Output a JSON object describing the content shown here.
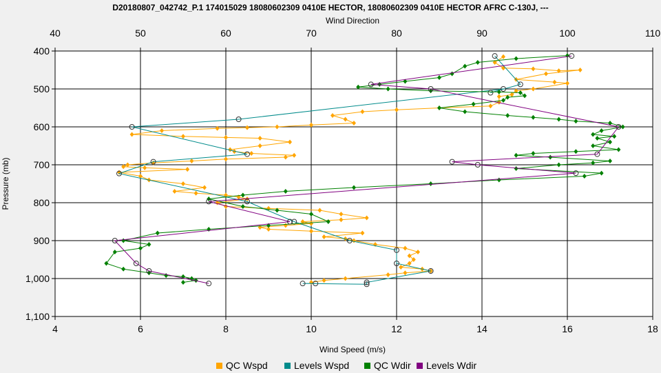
{
  "chart_data": {
    "type": "line",
    "title": "D20180807_042742_P.1 174015029 18080602309 0410E HECTOR, 18080602309 0410E HECTOR AFRC C-130J, ---",
    "x_top_label": "Wind Direction",
    "x_bottom_label": "Wind Speed (m/s)",
    "ylabel": "Pressure (mb)",
    "x_top_range": [
      40,
      110
    ],
    "x_top_ticks": [
      "40",
      "50",
      "60",
      "70",
      "80",
      "90",
      "100",
      "110"
    ],
    "x_bottom_range": [
      4,
      18
    ],
    "x_bottom_ticks": [
      "4",
      "6",
      "8",
      "10",
      "12",
      "14",
      "16",
      "18"
    ],
    "y_range": [
      400,
      1100
    ],
    "y_reversed": true,
    "y_ticks": [
      "400",
      "500",
      "600",
      "700",
      "800",
      "900",
      "1,000",
      "1,100"
    ],
    "grid": true,
    "legend_position": "bottom",
    "colors": {
      "qc_wspd": "#FFA500",
      "levels_wspd": "#008B8B",
      "qc_wdir": "#008000",
      "levels_wdir": "#800080"
    },
    "series": [
      {
        "name": "QC Wspd",
        "axis": "bottom",
        "key": "qc_wspd",
        "x": [
          14.5,
          14.3,
          14.5,
          15.2,
          15.8,
          16.3,
          15.5,
          14.8,
          15.7,
          16.0,
          15.2,
          14.8,
          14.7,
          14.4,
          14.4,
          14.2,
          13.0,
          12.0,
          11.2,
          10.5,
          10.8,
          11.0,
          10.0,
          9.2,
          8.5,
          7.8,
          6.5,
          5.8,
          7.0,
          8.0,
          8.8,
          9.5,
          8.8,
          8.1,
          8.2,
          8.6,
          9.6,
          9.4,
          8.0,
          7.2,
          6.3,
          5.7,
          5.6,
          6.1,
          7.1,
          5.5,
          6.0,
          6.2,
          7.0,
          7.5,
          6.8,
          7.3,
          8.0,
          8.3,
          8.5,
          7.8,
          8.0,
          9.0,
          10.2,
          10.7,
          11.3,
          10.7,
          9.8,
          10.0,
          9.4,
          8.8,
          9.0,
          10.0,
          11.2,
          10.3,
          10.8,
          11.0,
          11.5,
          12.2,
          12.5,
          12.3,
          12.4,
          12.3,
          12.1,
          12.6,
          12.8,
          12.2,
          11.8,
          10.8,
          10.3,
          10.0
        ],
        "y": [
          415,
          430,
          445,
          447,
          452,
          450,
          460,
          475,
          482,
          485,
          500,
          505,
          515,
          520,
          535,
          545,
          550,
          555,
          560,
          570,
          580,
          590,
          595,
          600,
          602,
          604,
          610,
          620,
          625,
          628,
          630,
          640,
          650,
          660,
          665,
          670,
          675,
          680,
          685,
          690,
          695,
          700,
          705,
          708,
          712,
          720,
          730,
          740,
          750,
          760,
          770,
          775,
          780,
          785,
          790,
          800,
          810,
          815,
          820,
          830,
          840,
          845,
          850,
          855,
          860,
          865,
          870,
          875,
          880,
          890,
          895,
          900,
          910,
          920,
          930,
          940,
          950,
          960,
          970,
          975,
          980,
          985,
          990,
          1000,
          1005,
          1010
        ]
      },
      {
        "name": "Levels Wspd",
        "axis": "bottom",
        "key": "levels_wspd",
        "x": [
          14.3,
          14.9,
          14.2,
          14.5,
          8.3,
          5.8,
          8.5,
          6.3,
          5.5,
          8.5,
          9.6,
          10.9,
          12.0,
          12.0,
          12.8,
          11.3,
          11.3,
          9.8,
          10.1
        ],
        "y": [
          413,
          488,
          510,
          500,
          580,
          600,
          672,
          692,
          723,
          797,
          850,
          900,
          925,
          960,
          980,
          1010,
          1015,
          1013,
          1013
        ]
      },
      {
        "name": "QC Wdir",
        "axis": "top",
        "key": "qc_wdir",
        "x": [
          100.0,
          94.0,
          89.5,
          88.0,
          86.5,
          85.0,
          81.0,
          78.0,
          75.5,
          79.0,
          84.0,
          92.0,
          94.5,
          95.0,
          93.0,
          92.5,
          89.0,
          85.0,
          88.0,
          93.0,
          96.0,
          99.0,
          101.0,
          105.0,
          106.5,
          104.0,
          103.0,
          105.5,
          103.5,
          105.0,
          103.0,
          106.0,
          101.0,
          96.0,
          94.0,
          98.0,
          105.0,
          103.0,
          99.0,
          94.0,
          104.0,
          102.0,
          92.0,
          84.0,
          75.0,
          67.0,
          62.0,
          58.0,
          62.0,
          66.0,
          70.0,
          72.0,
          65.0,
          58.0,
          52.0,
          48.0,
          51.0,
          50.0,
          47.0,
          46.0,
          48.0,
          51.0,
          53.0,
          55.0,
          56.0,
          56.5,
          55.0
        ],
        "y": [
          412,
          420,
          430,
          440,
          460,
          470,
          480,
          488,
          495,
          500,
          505,
          508,
          510,
          518,
          522,
          530,
          540,
          550,
          560,
          570,
          575,
          580,
          585,
          590,
          600,
          610,
          620,
          625,
          630,
          640,
          650,
          660,
          665,
          670,
          675,
          680,
          690,
          695,
          700,
          710,
          722,
          730,
          740,
          750,
          760,
          770,
          780,
          790,
          810,
          820,
          830,
          850,
          860,
          870,
          880,
          900,
          910,
          920,
          930,
          960,
          975,
          985,
          992,
          995,
          1000,
          1005,
          1010
        ]
      },
      {
        "name": "Levels Wdir",
        "axis": "top",
        "key": "levels_wdir",
        "x": [
          100.5,
          77.0,
          84.0,
          106.0,
          103.5,
          86.5,
          89.5,
          101.0,
          58.0,
          67.5,
          47.0,
          49.5,
          51.0,
          58.0
        ],
        "y": [
          413,
          488,
          500,
          600,
          672,
          692,
          700,
          722,
          797,
          850,
          900,
          960,
          980,
          1013
        ]
      }
    ]
  }
}
